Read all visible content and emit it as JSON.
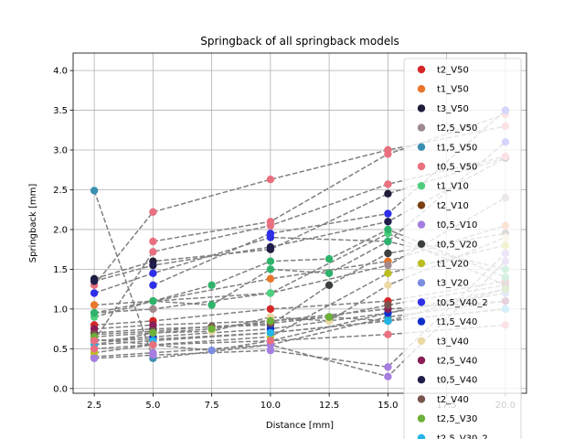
{
  "chart_data": {
    "type": "scatter",
    "title": "Springback of all springback models",
    "xlabel": "Distance [mm]",
    "ylabel": "Springback [mm]",
    "xlim": [
      1.6,
      20.9
    ],
    "ylim": [
      -0.06,
      4.22
    ],
    "xticks": [
      2.5,
      5.0,
      7.5,
      10.0,
      12.5,
      15.0,
      17.5,
      20.0
    ],
    "xtick_labels": [
      "2.5",
      "5.0",
      "7.5",
      "10.0",
      "12.5",
      "15.0",
      "17.5",
      "20.0"
    ],
    "yticks": [
      0.0,
      0.5,
      1.0,
      1.5,
      2.0,
      2.5,
      3.0,
      3.5,
      4.0
    ],
    "ytick_labels": [
      "0.0",
      "0.5",
      "1.0",
      "1.5",
      "2.0",
      "2.5",
      "3.0",
      "3.5",
      "4.0"
    ],
    "grid": true,
    "legend_position": "right",
    "series": [
      {
        "name": "t2_V50",
        "color": "#d62728",
        "x": [
          2.5,
          5.0,
          10.0,
          15.0,
          20.0
        ],
        "y": [
          0.8,
          0.85,
          1.0,
          1.1,
          1.35
        ]
      },
      {
        "name": "t1_V50",
        "color": "#e8762b",
        "x": [
          2.5,
          5.0,
          10.0,
          15.0,
          20.0
        ],
        "y": [
          1.05,
          1.1,
          1.38,
          1.6,
          2.05
        ]
      },
      {
        "name": "t3_V50",
        "color": "#1f1d3a",
        "x": [
          2.5,
          5.0,
          10.0,
          15.0,
          20.0
        ],
        "y": [
          1.38,
          1.6,
          1.75,
          2.45,
          2.9
        ]
      },
      {
        "name": "t2,5_V50",
        "color": "#a08a8e",
        "x": [
          2.5,
          5.0,
          10.0,
          15.0,
          20.0
        ],
        "y": [
          0.95,
          1.0,
          1.2,
          1.55,
          2.4
        ]
      },
      {
        "name": "t1,5_V50",
        "color": "#3a8fb0",
        "x": [
          2.5,
          5.0,
          10.0,
          15.0,
          20.0
        ],
        "y": [
          2.49,
          0.38,
          0.55,
          0.9,
          1.1
        ]
      },
      {
        "name": "t0,5_V50",
        "color": "#e8707f",
        "x": [
          2.5,
          5.0,
          10.0,
          15.0,
          20.0
        ],
        "y": [
          1.3,
          2.22,
          2.63,
          3.0,
          3.3
        ]
      },
      {
        "name": "t1_V10",
        "color": "#4ccf7e",
        "x": [
          2.5,
          5.0,
          10.0,
          15.0,
          20.0
        ],
        "y": [
          0.9,
          1.1,
          1.2,
          1.95,
          1.3
        ]
      },
      {
        "name": "t2_V10",
        "color": "#7a3e12",
        "x": [
          2.5,
          5.0,
          10.0,
          15.0,
          20.0
        ],
        "y": [
          0.6,
          0.62,
          0.7,
          0.85,
          1.0
        ]
      },
      {
        "name": "t0,5_V10",
        "color": "#a67ee0",
        "x": [
          2.5,
          5.0,
          10.0,
          15.0,
          20.0
        ],
        "y": [
          0.4,
          0.45,
          0.55,
          0.15,
          1.6
        ]
      },
      {
        "name": "t0,5_V20",
        "color": "#3b3f3f",
        "x": [
          2.5,
          5.0,
          10.0,
          12.5,
          15.0,
          20.0
        ],
        "y": [
          0.7,
          0.75,
          0.8,
          1.3,
          1.7,
          1.95
        ]
      },
      {
        "name": "t1_V20",
        "color": "#bcbd22",
        "x": [
          2.5,
          5.0,
          10.0,
          15.0,
          20.0
        ],
        "y": [
          0.45,
          0.55,
          0.65,
          1.45,
          1.8
        ]
      },
      {
        "name": "t3_V20",
        "color": "#7b8ee0",
        "x": [
          2.5,
          5.0,
          7.5,
          10.0,
          15.0,
          20.0
        ],
        "y": [
          0.62,
          0.55,
          0.48,
          0.6,
          0.95,
          1.2
        ]
      },
      {
        "name": "t0,5_V40_2",
        "color": "#2f2ee8",
        "x": [
          2.5,
          5.0,
          10.0,
          15.0,
          20.0
        ],
        "y": [
          1.2,
          1.45,
          1.9,
          1.85,
          3.1
        ]
      },
      {
        "name": "t1,5_V40",
        "color": "#0f2fcc",
        "x": [
          2.5,
          5.0,
          10.0,
          15.0,
          20.0
        ],
        "y": [
          0.6,
          0.65,
          0.75,
          0.95,
          1.25
        ]
      },
      {
        "name": "t3_V40",
        "color": "#ecd8a4",
        "x": [
          2.5,
          5.0,
          7.5,
          10.0,
          12.5,
          15.0,
          20.0
        ],
        "y": [
          0.55,
          0.7,
          0.72,
          0.9,
          0.85,
          1.3,
          1.9
        ]
      },
      {
        "name": "t2,5_V40",
        "color": "#8a1f58",
        "x": [
          2.5,
          5.0,
          10.0,
          15.0,
          20.0
        ],
        "y": [
          0.75,
          0.8,
          0.85,
          1.0,
          1.1
        ]
      },
      {
        "name": "t0,5_V40",
        "color": "#1f1d4a",
        "x": [
          2.5,
          5.0,
          10.0,
          15.0,
          20.0
        ],
        "y": [
          1.35,
          1.55,
          1.78,
          2.1,
          2.9
        ]
      },
      {
        "name": "t2_V40",
        "color": "#7a5550",
        "x": [
          2.5,
          5.0,
          7.5,
          10.0,
          12.5,
          15.0,
          20.0
        ],
        "y": [
          0.68,
          0.72,
          0.78,
          0.82,
          0.9,
          1.05,
          1.3
        ]
      },
      {
        "name": "t2,5_V30",
        "color": "#6db03a",
        "x": [
          2.5,
          5.0,
          7.5,
          10.0,
          12.5,
          15.0,
          20.0
        ],
        "y": [
          0.65,
          0.7,
          0.75,
          0.85,
          0.9,
          0.85,
          1.25
        ]
      },
      {
        "name": "t2,5_V30_2",
        "color": "#23b4e8",
        "x": [
          2.5,
          5.0,
          10.0,
          15.0,
          20.0
        ],
        "y": [
          0.55,
          0.6,
          0.7,
          0.85,
          1.0
        ]
      },
      {
        "name": "",
        "color": "#e8707f",
        "x": [
          5.0,
          10.0,
          15.0,
          20.0
        ],
        "y": [
          1.85,
          2.1,
          2.95,
          3.45
        ]
      },
      {
        "name": "",
        "color": "#2f2ee8",
        "x": [
          5.0,
          10.0,
          15.0,
          20.0
        ],
        "y": [
          1.3,
          1.95,
          2.2,
          3.5
        ]
      },
      {
        "name": "",
        "color": "#2fb36b",
        "x": [
          5.0,
          7.5,
          10.0,
          12.5,
          15.0,
          20.0
        ],
        "y": [
          1.1,
          1.3,
          1.6,
          1.63,
          2.0,
          1.4
        ]
      },
      {
        "name": "",
        "color": "#2fb36b",
        "x": [
          2.5,
          5.0,
          7.5,
          10.0,
          12.5,
          15.0,
          20.0
        ],
        "y": [
          0.95,
          1.1,
          1.05,
          1.5,
          1.45,
          1.85,
          1.5
        ]
      },
      {
        "name": "",
        "color": "#e8707f",
        "x": [
          2.5,
          5.0,
          10.0,
          15.0,
          20.0
        ],
        "y": [
          0.6,
          1.72,
          2.05,
          2.57,
          2.92
        ]
      },
      {
        "name": "",
        "color": "#a67ee0",
        "x": [
          2.5,
          5.0,
          10.0,
          15.0,
          20.0
        ],
        "y": [
          0.38,
          0.42,
          0.48,
          0.27,
          1.7
        ]
      },
      {
        "name": "",
        "color": "#e8707f",
        "x": [
          2.5,
          5.0,
          10.0,
          15.0,
          20.0
        ],
        "y": [
          0.5,
          0.55,
          0.6,
          0.68,
          0.8
        ]
      }
    ]
  }
}
